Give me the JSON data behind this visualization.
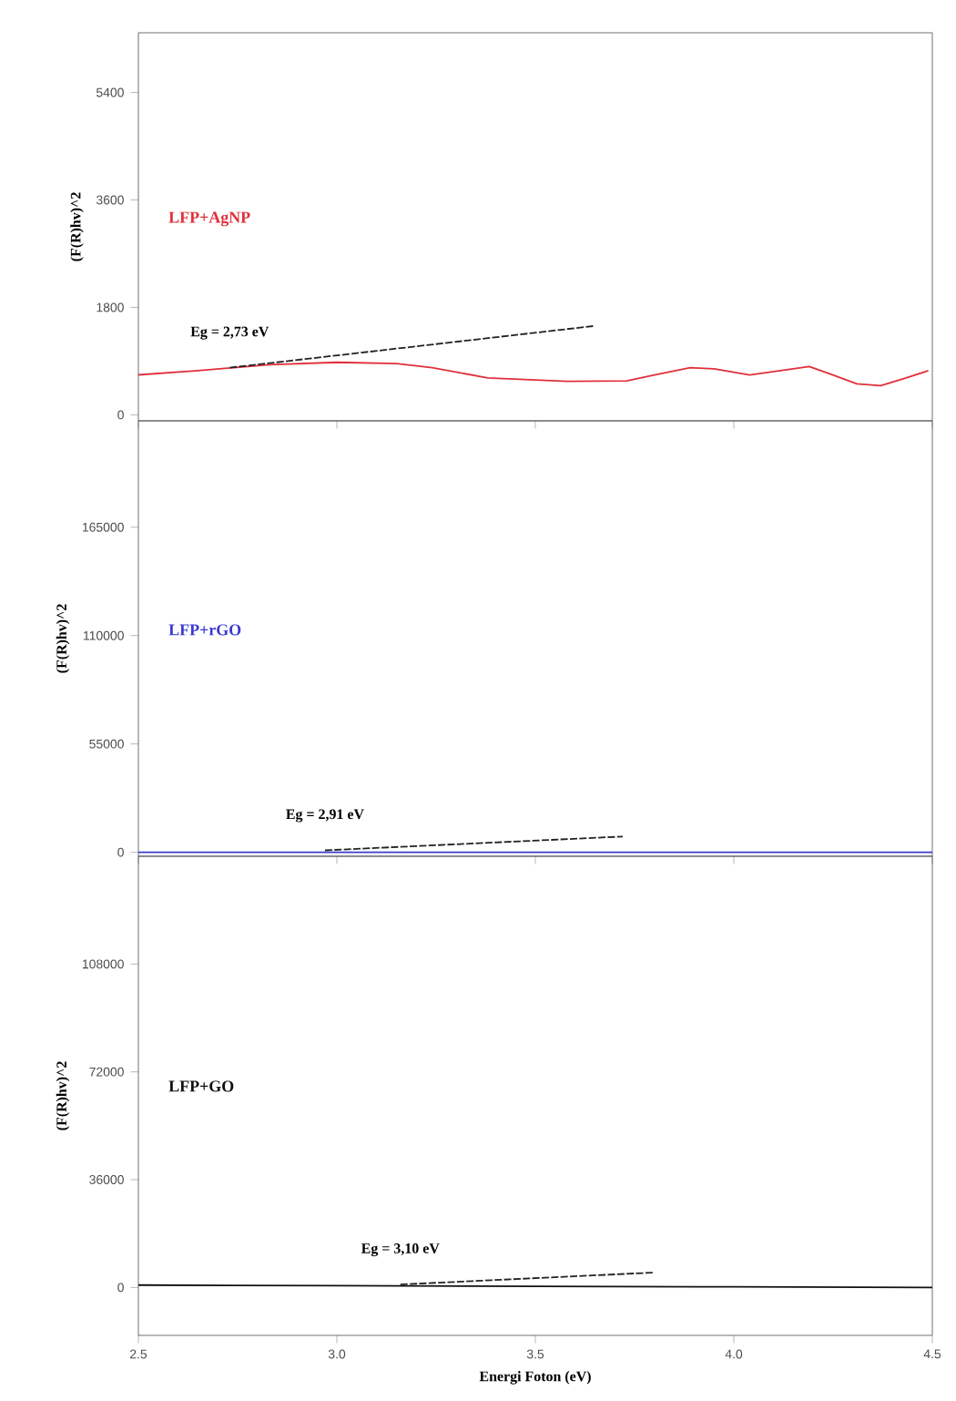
{
  "chart_data": [
    {
      "type": "line",
      "ylabel": "(F(R)hv)^2",
      "xlim": [
        2.5,
        4.5
      ],
      "ylim": [
        -100,
        6400
      ],
      "xticks": [
        {
          "value": 2.5,
          "label": null
        },
        {
          "value": 3.0,
          "label": null
        },
        {
          "value": 3.5,
          "label": null
        },
        {
          "value": 4.0,
          "label": null
        },
        {
          "value": 4.5,
          "label": null
        }
      ],
      "yticks": [
        0,
        1800,
        3600,
        5400
      ],
      "tick_labels": "y",
      "series": [
        {
          "name": "LFP+AgNP",
          "color": "#e0303a",
          "x": [
            2.5,
            2.65,
            2.83,
            3.0,
            3.15,
            3.24,
            3.38,
            3.58,
            3.73,
            3.8,
            3.89,
            3.95,
            4.04,
            4.19,
            4.24,
            4.31,
            4.37,
            4.43,
            4.49
          ],
          "values": [
            670,
            740,
            840,
            880,
            860,
            790,
            620,
            560,
            570,
            670,
            790,
            770,
            670,
            810,
            690,
            520,
            490,
            610,
            740
          ]
        },
        {
          "type": "line",
          "color": "#222222",
          "line_style": "dashed",
          "x": [
            2.73,
            3.65
          ],
          "values": [
            790,
            1490
          ]
        }
      ],
      "annotations": [
        "Eg = 2,73 eV"
      ]
    },
    {
      "type": "line",
      "ylabel": "(F(R)hv)^2",
      "xlim": [
        2.5,
        4.5
      ],
      "ylim": [
        -2000,
        219000
      ],
      "xticks": [
        {
          "value": 2.5,
          "label": null
        },
        {
          "value": 3.0,
          "label": null
        },
        {
          "value": 3.5,
          "label": null
        },
        {
          "value": 4.0,
          "label": null
        },
        {
          "value": 4.5,
          "label": null
        }
      ],
      "yticks": [
        0,
        55000,
        110000,
        165000
      ],
      "tick_labels": "y",
      "series": [
        {
          "name": "LFP+rGO",
          "color": "#3a3ad0",
          "x": [
            2.5,
            3.0,
            3.5,
            4.0,
            4.5
          ],
          "values": [
            0,
            0,
            0,
            0,
            0
          ]
        },
        {
          "type": "line",
          "color": "#222222",
          "line_style": "dashed",
          "x": [
            2.97,
            3.72
          ],
          "values": [
            1000,
            8000
          ]
        }
      ],
      "annotations": [
        "Eg = 2,91 eV"
      ]
    },
    {
      "type": "line",
      "ylabel": "(F(R)hv)^2",
      "xlabel": "Energi Foton (eV)",
      "xlim": [
        2.5,
        4.5
      ],
      "ylim": [
        -16000,
        144000
      ],
      "xticks": [
        {
          "value": 2.5,
          "label": "2.5"
        },
        {
          "value": 3.0,
          "label": "3.0"
        },
        {
          "value": 3.5,
          "label": "3.5"
        },
        {
          "value": 4.0,
          "label": "4.0"
        },
        {
          "value": 4.5,
          "label": "4.5"
        }
      ],
      "yticks": [
        0,
        36000,
        72000,
        108000
      ],
      "series": [
        {
          "name": "LFP+GO",
          "color": "#111111",
          "x": [
            2.5,
            3.0,
            3.5,
            4.0,
            4.5
          ],
          "values": [
            800,
            600,
            400,
            200,
            0
          ]
        },
        {
          "type": "line",
          "color": "#222222",
          "line_style": "dashed",
          "x": [
            3.16,
            3.8
          ],
          "values": [
            1000,
            5000
          ]
        }
      ],
      "annotations": [
        "Eg = 3,10 eV"
      ]
    }
  ]
}
